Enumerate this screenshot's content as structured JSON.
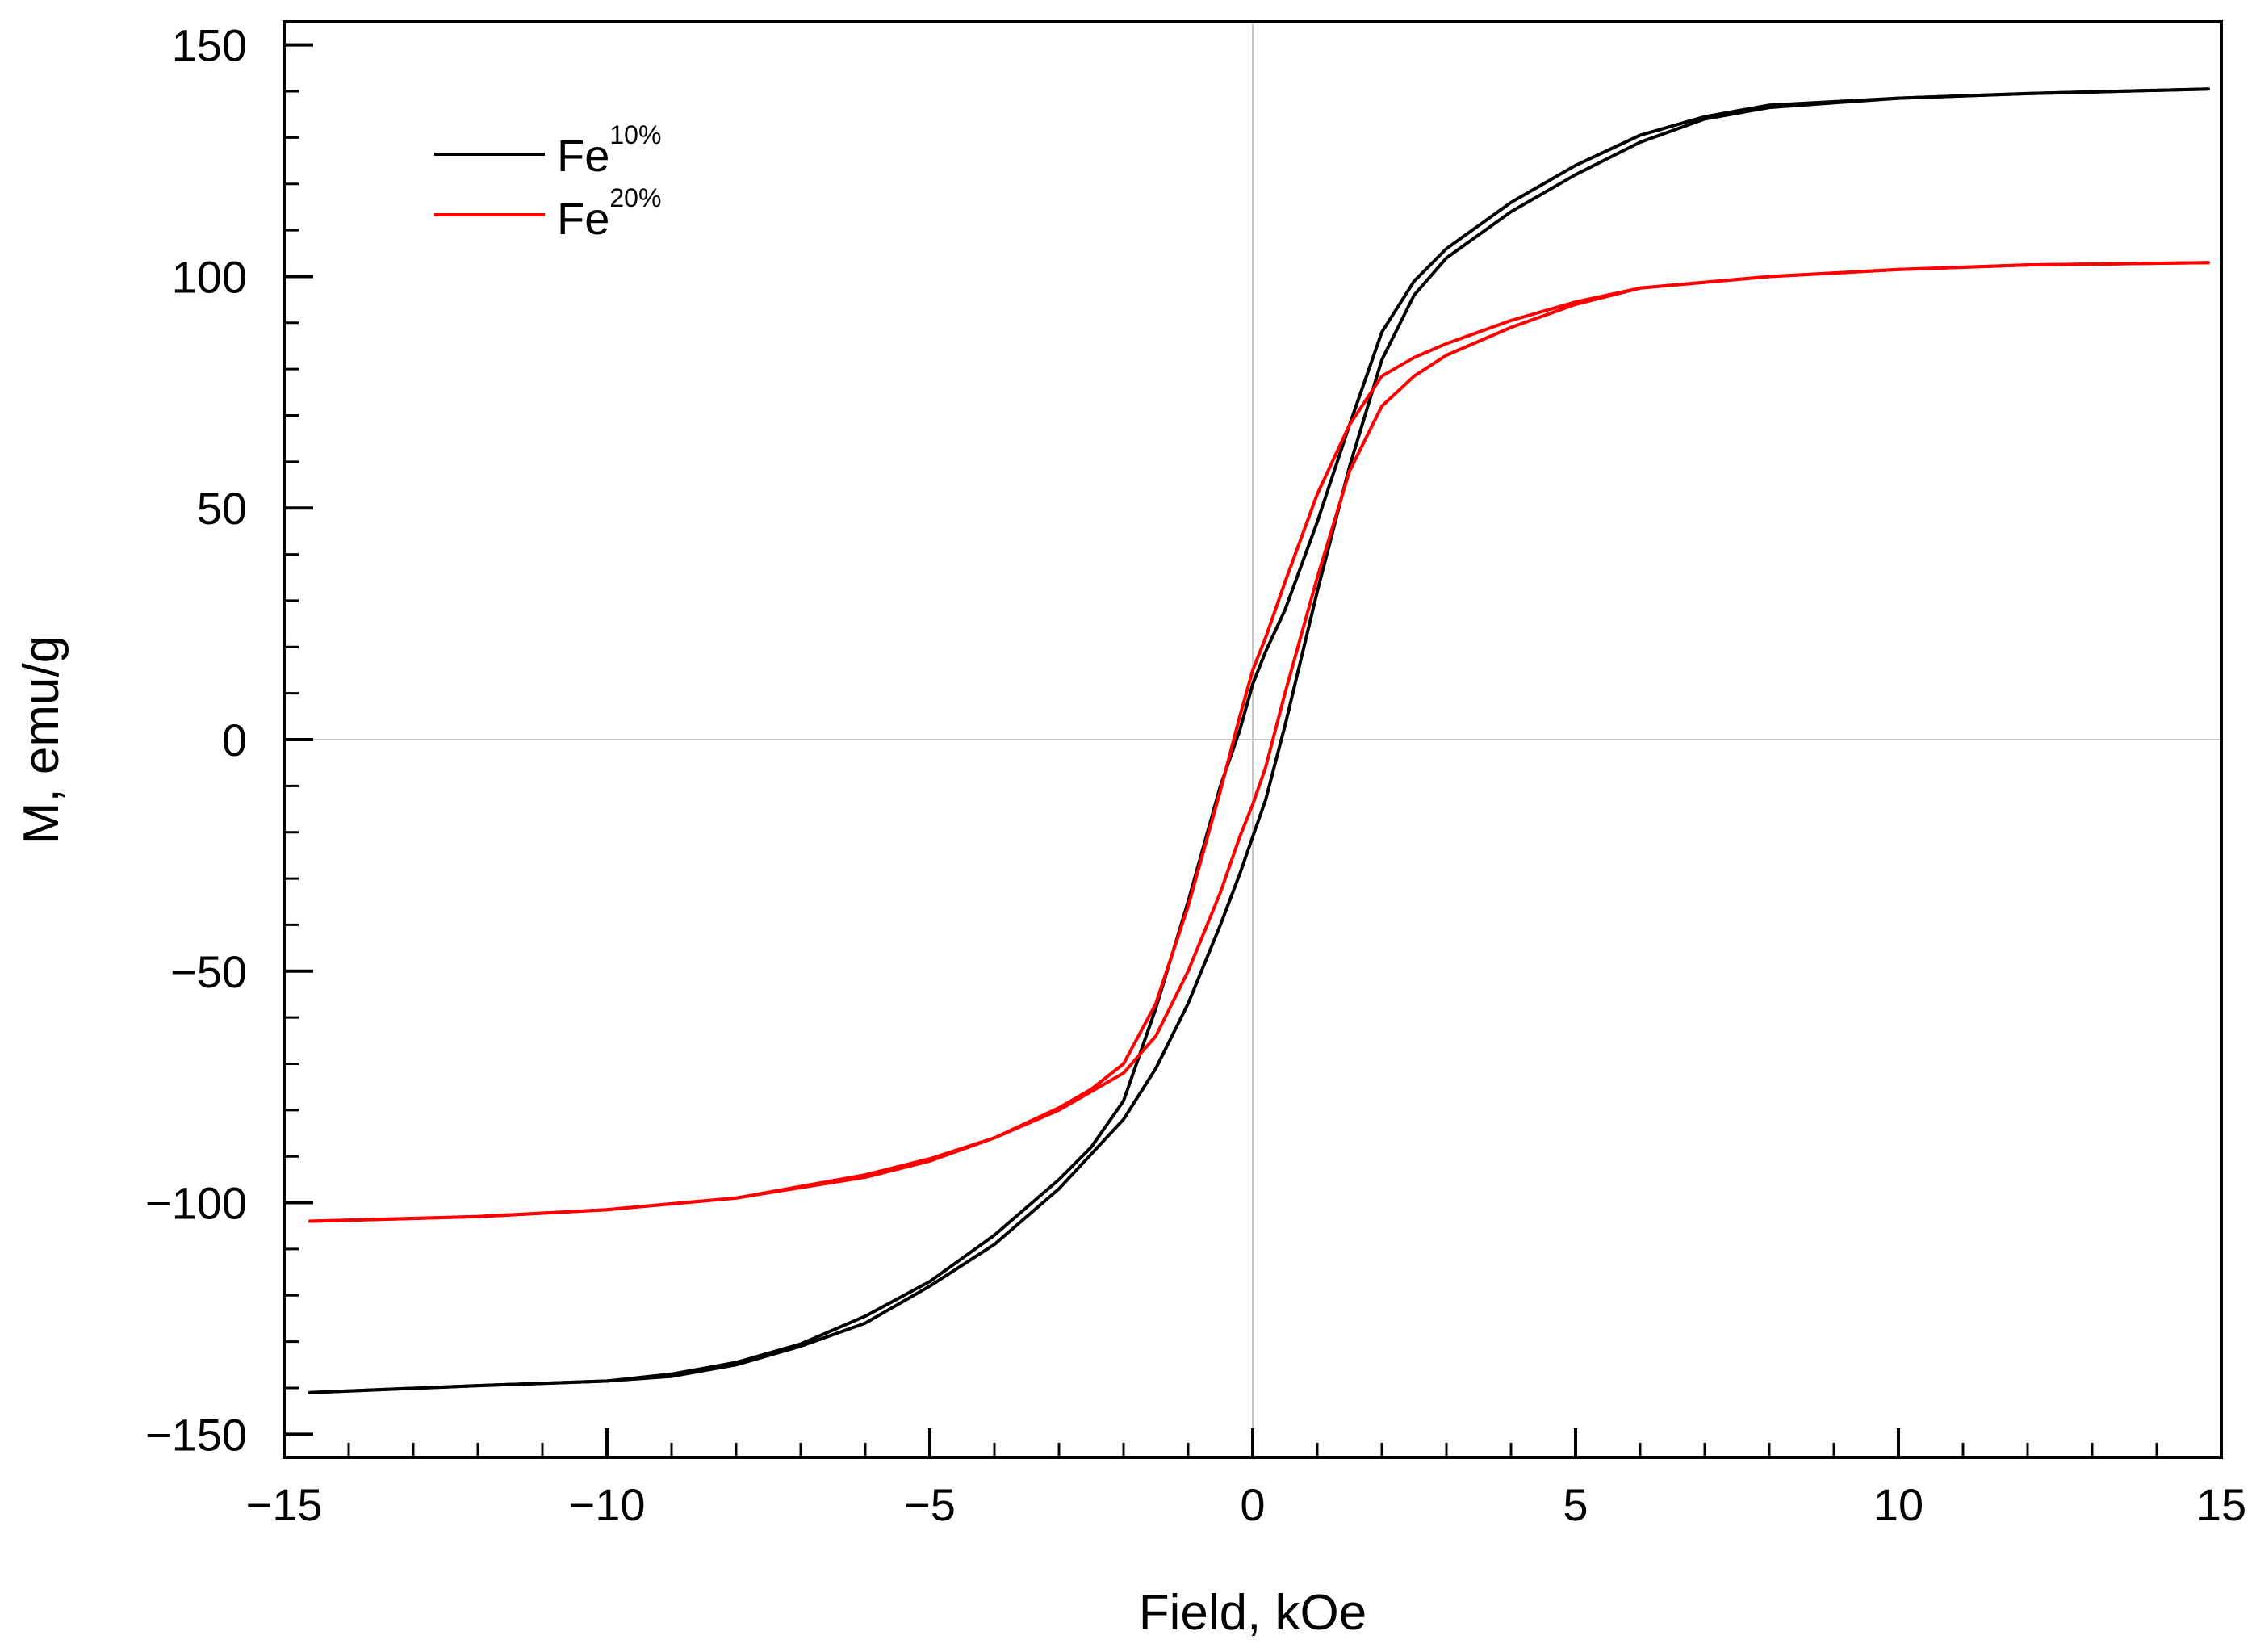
{
  "chart_data": {
    "type": "line",
    "title": "",
    "xlabel": "Field, kOe",
    "ylabel": "M, emu/g",
    "xlim": [
      -15,
      15
    ],
    "ylim": [
      -155,
      155
    ],
    "x_ticks": [
      -15,
      -10,
      -5,
      0,
      5,
      10,
      15
    ],
    "x_tick_labels": [
      "−15",
      "−10",
      "−5",
      "0",
      "5",
      "10",
      "15"
    ],
    "x_minor_step": 1,
    "y_ticks": [
      -150,
      -100,
      -50,
      0,
      50,
      100,
      150
    ],
    "y_tick_labels": [
      "−150",
      "−100",
      "−50",
      "0",
      "50",
      "100",
      "150"
    ],
    "y_minor_step": 10,
    "grid": "zero lines only",
    "legend_position": "top-left",
    "series": [
      {
        "name": "Fe",
        "superscript": "10%",
        "color": "#000000",
        "branches": [
          {
            "x": [
              -14.6,
              -12,
              -10,
              -9,
              -8,
              -7,
              -6,
              -5,
              -4,
              -3,
              -2,
              -1.5,
              -1,
              -0.5,
              -0.2,
              0,
              0.2,
              0.5,
              1,
              1.5,
              2,
              2.5,
              3,
              4,
              5,
              6,
              7,
              8,
              10,
              12,
              14.8
            ],
            "y": [
              -141,
              -139.5,
              -138.5,
              -137.5,
              -135,
              -131,
              -126,
              -118,
              -109,
              -97,
              -82,
              -71,
              -57,
              -40,
              -29,
              -21,
              -13,
              3,
              32,
              59,
              82,
              96,
              104,
              114,
              122,
              129,
              134,
              136.5,
              138.5,
              139.5,
              140.5
            ]
          },
          {
            "x": [
              14.8,
              12,
              10,
              8,
              7,
              6,
              5,
              4,
              3,
              2.5,
              2,
              1.5,
              1,
              0.5,
              0.2,
              0,
              -0.2,
              -0.5,
              -1,
              -1.5,
              -2,
              -2.5,
              -3,
              -4,
              -5,
              -6,
              -7,
              -8,
              -9,
              -10,
              -12,
              -14.6
            ],
            "y": [
              140.5,
              139.5,
              138.5,
              137,
              134.5,
              130.5,
              124,
              116,
              106,
              99,
              88,
              68,
              47,
              28,
              19,
              12,
              2,
              -10,
              -35,
              -58,
              -78,
              -88,
              -95,
              -107,
              -117,
              -124.5,
              -130.5,
              -134.5,
              -137,
              -138.5,
              -139.5,
              -141
            ]
          }
        ]
      },
      {
        "name": "Fe",
        "superscript": "20%",
        "color": "#ff0000",
        "branches": [
          {
            "x": [
              -14.6,
              -12,
              -10,
              -8,
              -6,
              -5,
              -4,
              -3,
              -2,
              -1.5,
              -1,
              -0.5,
              -0.2,
              0,
              0.2,
              0.5,
              1,
              1.5,
              2,
              2.5,
              3,
              4,
              5,
              6,
              8,
              10,
              12,
              14.8
            ],
            "y": [
              -104,
              -103,
              -101.5,
              -99,
              -94,
              -90.5,
              -86,
              -80,
              -72,
              -64,
              -50,
              -33,
              -21,
              -14,
              -6,
              10,
              35,
              58,
              72,
              78.5,
              83,
              89,
              94,
              97.5,
              100,
              101.5,
              102.5,
              103
            ]
          },
          {
            "x": [
              14.8,
              12,
              10,
              8,
              6,
              5,
              4,
              3,
              2.5,
              2,
              1.5,
              1,
              0.5,
              0.2,
              0,
              -0.2,
              -0.5,
              -1,
              -1.5,
              -2,
              -2.5,
              -3,
              -4,
              -5,
              -6,
              -8,
              -10,
              -12,
              -14.6
            ],
            "y": [
              103,
              102.5,
              101.5,
              100,
              97.5,
              94.5,
              90.5,
              85.5,
              82.5,
              78.5,
              68,
              53,
              34,
              22,
              15,
              5,
              -11,
              -36,
              -57,
              -70,
              -75.5,
              -79.5,
              -86,
              -91,
              -94.5,
              -99,
              -101.5,
              -103,
              -104
            ]
          }
        ]
      }
    ]
  }
}
